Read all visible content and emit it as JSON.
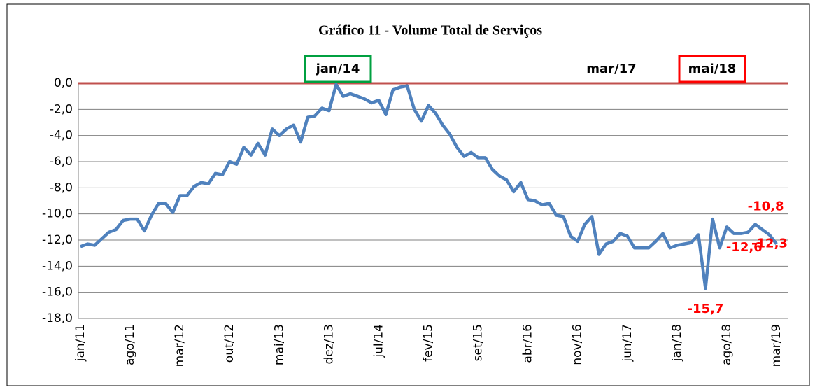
{
  "chart_data": {
    "type": "line",
    "title": "Gráfico 11 - Volume Total de Serviços",
    "categories": [
      "jan/11",
      null,
      null,
      null,
      null,
      null,
      null,
      "ago/11",
      null,
      null,
      null,
      null,
      null,
      null,
      "mar/12",
      null,
      null,
      null,
      null,
      null,
      null,
      "out/12",
      null,
      null,
      null,
      null,
      null,
      null,
      "mai/13",
      null,
      null,
      null,
      null,
      null,
      null,
      "dez/13",
      null,
      null,
      null,
      null,
      null,
      null,
      "jul/14",
      null,
      null,
      null,
      null,
      null,
      null,
      "fev/15",
      null,
      null,
      null,
      null,
      null,
      null,
      "set/15",
      null,
      null,
      null,
      null,
      null,
      null,
      "abr/16",
      null,
      null,
      null,
      null,
      null,
      null,
      "nov/16",
      null,
      null,
      null,
      null,
      null,
      null,
      "jun/17",
      null,
      null,
      null,
      null,
      null,
      null,
      "jan/18",
      null,
      null,
      null,
      null,
      null,
      null,
      "ago/18",
      null,
      null,
      null,
      null,
      null,
      null,
      "mar/19"
    ],
    "series": [
      {
        "name": "Volume Total de Serviços",
        "color": "#4f81bd",
        "values": [
          -12.5,
          -12.3,
          -12.4,
          -11.9,
          -11.4,
          -11.2,
          -10.5,
          -10.4,
          -10.4,
          -11.3,
          -10.1,
          -9.2,
          -9.2,
          -9.9,
          -8.6,
          -8.6,
          -7.9,
          -7.6,
          -7.7,
          -6.9,
          -7.0,
          -6.0,
          -6.2,
          -4.9,
          -5.5,
          -4.6,
          -5.5,
          -3.5,
          -4.0,
          -3.5,
          -3.2,
          -4.5,
          -2.6,
          -2.5,
          -1.9,
          -2.1,
          -0.1,
          -1.0,
          -0.8,
          -1.0,
          -1.2,
          -1.5,
          -1.3,
          -2.4,
          -0.5,
          -0.3,
          -0.2,
          -2.0,
          -2.9,
          -1.7,
          -2.3,
          -3.2,
          -3.9,
          -4.9,
          -5.6,
          -5.3,
          -5.7,
          -5.7,
          -6.6,
          -7.1,
          -7.4,
          -8.3,
          -7.6,
          -8.9,
          -9.0,
          -9.3,
          -9.2,
          -10.1,
          -10.2,
          -11.7,
          -12.1,
          -10.8,
          -10.2,
          -13.1,
          -12.3,
          -12.1,
          -11.5,
          -11.7,
          -12.6,
          -12.6,
          -12.6,
          -12.1,
          -11.5,
          -12.6,
          -12.4,
          -12.3,
          -12.2,
          -11.6,
          -15.7,
          -10.4,
          -12.6,
          -11.0,
          -11.5,
          -11.5,
          -11.4,
          -10.8,
          -11.2,
          -11.6,
          -12.3
        ],
        "value_labels": [
          null,
          null,
          null,
          null,
          null,
          null,
          null,
          null,
          null,
          null,
          null,
          null,
          null,
          null,
          null,
          null,
          null,
          null,
          null,
          null,
          null,
          null,
          null,
          null,
          null,
          null,
          null,
          null,
          null,
          null,
          null,
          null,
          null,
          null,
          null,
          null,
          null,
          null,
          null,
          null,
          null,
          null,
          null,
          null,
          null,
          null,
          null,
          null,
          null,
          null,
          null,
          null,
          null,
          null,
          null,
          null,
          null,
          null,
          null,
          null,
          null,
          null,
          null,
          null,
          null,
          null,
          null,
          null,
          null,
          null,
          null,
          null,
          null,
          null,
          null,
          null,
          null,
          null,
          null,
          null,
          null,
          null,
          null,
          null,
          null,
          null,
          null,
          null,
          "-15,7",
          null,
          "-12,6",
          null,
          null,
          null,
          null,
          "-10,8",
          null,
          null,
          "-12,3"
        ]
      }
    ],
    "ylim": [
      -18,
      0
    ],
    "yticks": [
      {
        "value": -18,
        "label": "-18,0"
      },
      {
        "value": -16,
        "label": "-16,0"
      },
      {
        "value": -14,
        "label": "-14,0"
      },
      {
        "value": -12,
        "label": "-12,0"
      },
      {
        "value": -10,
        "label": "-10,0"
      },
      {
        "value": -8,
        "label": "-8,0"
      },
      {
        "value": -6,
        "label": "-6,0"
      },
      {
        "value": -4,
        "label": "-4,0"
      },
      {
        "value": -2,
        "label": "-2,0"
      },
      {
        "value": 0,
        "label": "0,0"
      }
    ],
    "grid": true,
    "reference_line": {
      "value": 0,
      "color": "#c0504d"
    },
    "annotations": [
      {
        "text": "jan/14",
        "box": "#00a040"
      },
      {
        "text": "mar/17"
      },
      {
        "text": "mai/18",
        "box": "#ff0000"
      }
    ],
    "value_label_color": "#ff0000"
  }
}
